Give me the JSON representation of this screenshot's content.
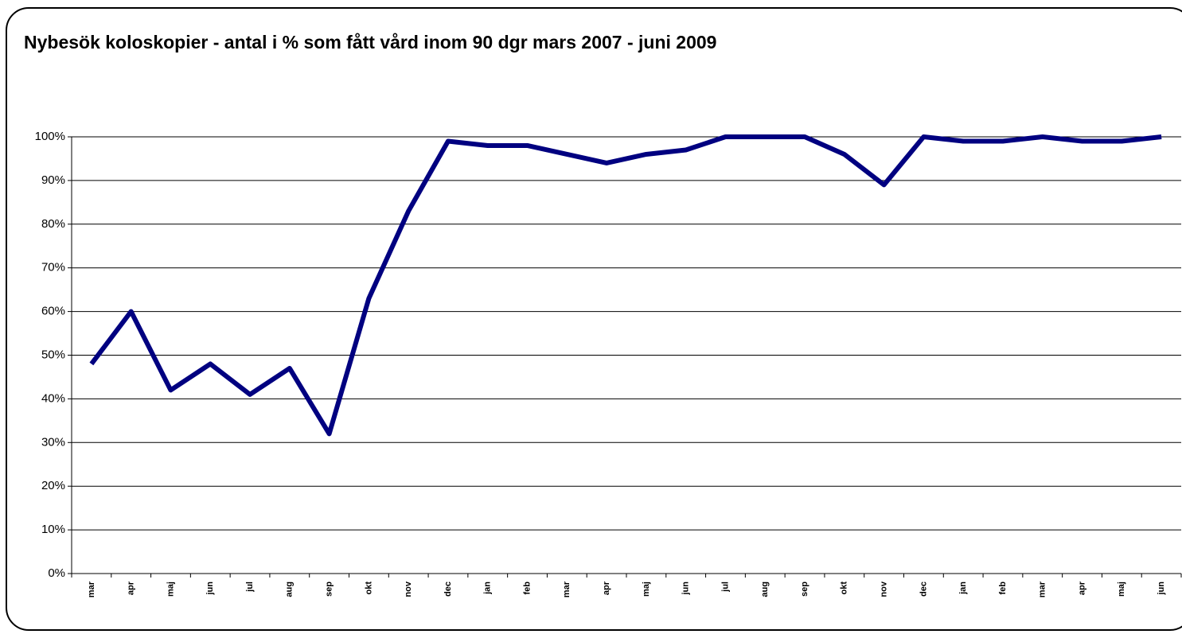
{
  "chart_data": {
    "type": "line",
    "title": "Nybesök koloskopier - antal i % som fått vård inom 90 dgr mars 2007 - juni 2009",
    "categories": [
      "mar",
      "apr",
      "maj",
      "jun",
      "jul",
      "aug",
      "sep",
      "okt",
      "nov",
      "dec",
      "jan",
      "feb",
      "mar",
      "apr",
      "maj",
      "jun",
      "jul",
      "aug",
      "sep",
      "okt",
      "nov",
      "dec",
      "jan",
      "feb",
      "mar",
      "apr",
      "maj",
      "jun"
    ],
    "series": [
      {
        "color": "#000080",
        "values": [
          48,
          60,
          42,
          48,
          41,
          47,
          32,
          63,
          83,
          99,
          98,
          98,
          96,
          94,
          96,
          97,
          100,
          100,
          100,
          96,
          89,
          100,
          99,
          99,
          100,
          99,
          99,
          100
        ]
      }
    ],
    "ylim": [
      0,
      100
    ],
    "yticks": [
      {
        "value": 0,
        "label": "0%"
      },
      {
        "value": 10,
        "label": "10%"
      },
      {
        "value": 20,
        "label": "20%"
      },
      {
        "value": 30,
        "label": "30%"
      },
      {
        "value": 40,
        "label": "40%"
      },
      {
        "value": 50,
        "label": "50%"
      },
      {
        "value": 60,
        "label": "60%"
      },
      {
        "value": 70,
        "label": "70%"
      },
      {
        "value": 80,
        "label": "80%"
      },
      {
        "value": 90,
        "label": "90%"
      },
      {
        "value": 100,
        "label": "100%"
      }
    ],
    "grid": true
  }
}
